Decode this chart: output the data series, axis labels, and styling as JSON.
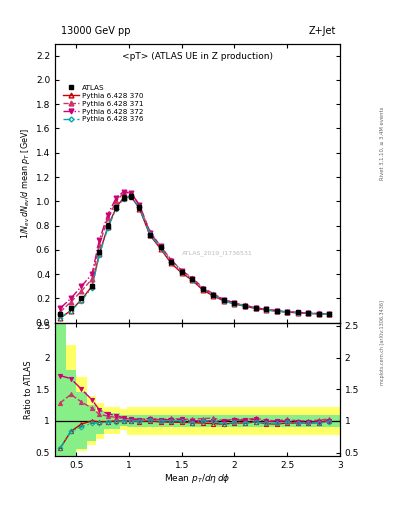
{
  "title_top": "13000 GeV pp",
  "title_top_right": "Z+Jet",
  "plot_title": "<pT> (ATLAS UE in Z production)",
  "ylabel_main": "1/N_{ev} dN_{ev}/d mean p_{T} [GeV]",
  "ylabel_ratio": "Ratio to ATLAS",
  "xlabel": "Mean p_{T}/dη dφ",
  "watermark": "ATLAS_2019_I1736531",
  "right_label_top": "Rivet 3.1.10, ≥ 3.4M events",
  "right_label_bottom": "mcplots.cern.ch [arXiv:1306.3436]",
  "xlim": [
    0.3,
    3.0
  ],
  "ylim_main": [
    0.0,
    2.3
  ],
  "ylim_ratio": [
    0.45,
    2.55
  ],
  "atlas_x": [
    0.35,
    0.45,
    0.55,
    0.65,
    0.72,
    0.8,
    0.88,
    0.95,
    1.02,
    1.1,
    1.2,
    1.3,
    1.4,
    1.5,
    1.6,
    1.7,
    1.8,
    1.9,
    2.0,
    2.1,
    2.2,
    2.3,
    2.4,
    2.5,
    2.6,
    2.7,
    2.8,
    2.9
  ],
  "atlas_y": [
    0.07,
    0.12,
    0.2,
    0.3,
    0.58,
    0.8,
    0.95,
    1.03,
    1.04,
    0.95,
    0.72,
    0.62,
    0.5,
    0.42,
    0.36,
    0.28,
    0.23,
    0.19,
    0.16,
    0.14,
    0.12,
    0.11,
    0.1,
    0.09,
    0.085,
    0.08,
    0.075,
    0.07
  ],
  "atlas_yerr": [
    0.005,
    0.006,
    0.008,
    0.01,
    0.015,
    0.02,
    0.02,
    0.02,
    0.02,
    0.02,
    0.015,
    0.015,
    0.012,
    0.012,
    0.01,
    0.01,
    0.01,
    0.008,
    0.008,
    0.007,
    0.007,
    0.007,
    0.006,
    0.006,
    0.006,
    0.006,
    0.006,
    0.006
  ],
  "p370_x": [
    0.35,
    0.45,
    0.55,
    0.65,
    0.72,
    0.8,
    0.88,
    0.95,
    1.02,
    1.1,
    1.2,
    1.3,
    1.4,
    1.5,
    1.6,
    1.7,
    1.8,
    1.9,
    2.0,
    2.1,
    2.2,
    2.3,
    2.4,
    2.5,
    2.6,
    2.7,
    2.8,
    2.9
  ],
  "p370_y": [
    0.04,
    0.1,
    0.19,
    0.3,
    0.57,
    0.79,
    0.95,
    1.03,
    1.04,
    0.94,
    0.72,
    0.61,
    0.49,
    0.41,
    0.35,
    0.27,
    0.22,
    0.18,
    0.155,
    0.135,
    0.118,
    0.105,
    0.095,
    0.087,
    0.082,
    0.077,
    0.073,
    0.07
  ],
  "p371_x": [
    0.35,
    0.45,
    0.55,
    0.65,
    0.72,
    0.8,
    0.88,
    0.95,
    1.02,
    1.1,
    1.2,
    1.3,
    1.4,
    1.5,
    1.6,
    1.7,
    1.8,
    1.9,
    2.0,
    2.1,
    2.2,
    2.3,
    2.4,
    2.5,
    2.6,
    2.7,
    2.8,
    2.9
  ],
  "p371_y": [
    0.09,
    0.17,
    0.26,
    0.36,
    0.64,
    0.86,
    1.0,
    1.07,
    1.07,
    0.97,
    0.75,
    0.63,
    0.52,
    0.43,
    0.37,
    0.29,
    0.24,
    0.19,
    0.165,
    0.143,
    0.125,
    0.111,
    0.1,
    0.092,
    0.085,
    0.08,
    0.076,
    0.072
  ],
  "p372_x": [
    0.35,
    0.45,
    0.55,
    0.65,
    0.72,
    0.8,
    0.88,
    0.95,
    1.02,
    1.1,
    1.2,
    1.3,
    1.4,
    1.5,
    1.6,
    1.7,
    1.8,
    1.9,
    2.0,
    2.1,
    2.2,
    2.3,
    2.4,
    2.5,
    2.6,
    2.7,
    2.8,
    2.9
  ],
  "p372_y": [
    0.12,
    0.2,
    0.3,
    0.4,
    0.68,
    0.89,
    1.03,
    1.08,
    1.07,
    0.97,
    0.74,
    0.63,
    0.51,
    0.43,
    0.36,
    0.28,
    0.23,
    0.19,
    0.163,
    0.141,
    0.123,
    0.109,
    0.099,
    0.09,
    0.083,
    0.078,
    0.074,
    0.07
  ],
  "p376_x": [
    0.35,
    0.45,
    0.55,
    0.65,
    0.72,
    0.8,
    0.88,
    0.95,
    1.02,
    1.1,
    1.2,
    1.3,
    1.4,
    1.5,
    1.6,
    1.7,
    1.8,
    1.9,
    2.0,
    2.1,
    2.2,
    2.3,
    2.4,
    2.5,
    2.6,
    2.7,
    2.8,
    2.9
  ],
  "p376_y": [
    0.04,
    0.1,
    0.18,
    0.29,
    0.56,
    0.78,
    0.94,
    1.02,
    1.04,
    0.95,
    0.73,
    0.62,
    0.5,
    0.42,
    0.35,
    0.28,
    0.23,
    0.18,
    0.157,
    0.136,
    0.118,
    0.106,
    0.096,
    0.088,
    0.082,
    0.077,
    0.073,
    0.069
  ],
  "color_370": "#cc0000",
  "color_371": "#cc3366",
  "color_372": "#cc0077",
  "color_376": "#00aaaa",
  "color_atlas": "#000000",
  "band_yellow": "#ffff66",
  "band_green": "#88ee88",
  "xticks": [
    0.5,
    1.0,
    1.5,
    2.0,
    2.5,
    3.0
  ],
  "xtick_labels": [
    "0.5",
    "1",
    "1.5",
    "2",
    "2.5",
    "3"
  ],
  "main_yticks": [
    0.0,
    0.2,
    0.4,
    0.6,
    0.8,
    1.0,
    1.2,
    1.4,
    1.6,
    1.8,
    2.0,
    2.2
  ],
  "ratio_yticks": [
    0.5,
    1.0,
    1.5,
    2.0,
    2.5
  ],
  "ratio_ytick_labels": [
    "0.5",
    "1",
    "1.5",
    "2",
    "2.5"
  ]
}
